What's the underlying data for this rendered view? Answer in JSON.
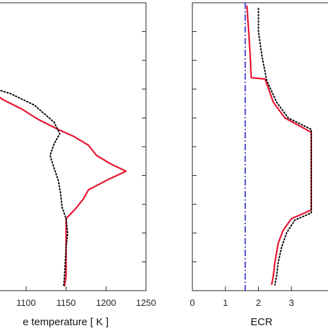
{
  "chart_data": [
    {
      "type": "line",
      "xlabel": "e temperature [ K ]",
      "xlim": [
        1050,
        1250
      ],
      "ylim": [
        0,
        1
      ],
      "x_ticks": [
        1100,
        1150,
        1200,
        1250
      ],
      "x_tick_labels": [
        "1100",
        "1150",
        "1200",
        "1250"
      ],
      "y_ticks": [
        0,
        0.1,
        0.2,
        0.3,
        0.4,
        0.5,
        0.6,
        0.7,
        0.8,
        0.9,
        1.0
      ],
      "series": [
        {
          "style": "solid",
          "color": "#e8112d",
          "points": [
            [
              1050,
              0.71
            ],
            [
              1070,
              0.665
            ],
            [
              1095,
              0.63
            ],
            [
              1115,
              0.595
            ],
            [
              1140,
              0.56
            ],
            [
              1160,
              0.535
            ],
            [
              1178,
              0.505
            ],
            [
              1188,
              0.47
            ],
            [
              1206,
              0.44
            ],
            [
              1225,
              0.415
            ],
            [
              1202,
              0.385
            ],
            [
              1178,
              0.35
            ],
            [
              1172,
              0.32
            ],
            [
              1162,
              0.285
            ],
            [
              1150,
              0.25
            ],
            [
              1150,
              0.2
            ],
            [
              1150,
              0.15
            ],
            [
              1150,
              0.1
            ],
            [
              1150,
              0.05
            ],
            [
              1148,
              0.015
            ]
          ]
        },
        {
          "style": "dotted",
          "color": "#000000",
          "points": [
            [
              1050,
              0.71
            ],
            [
              1080,
              0.685
            ],
            [
              1110,
              0.645
            ],
            [
              1135,
              0.585
            ],
            [
              1142,
              0.545
            ],
            [
              1135,
              0.51
            ],
            [
              1130,
              0.47
            ],
            [
              1135,
              0.425
            ],
            [
              1140,
              0.385
            ],
            [
              1143,
              0.34
            ],
            [
              1145,
              0.29
            ],
            [
              1150,
              0.25
            ],
            [
              1152,
              0.2
            ],
            [
              1150,
              0.15
            ],
            [
              1149,
              0.1
            ],
            [
              1148,
              0.05
            ],
            [
              1147,
              0.015
            ]
          ]
        }
      ]
    },
    {
      "type": "line",
      "xlabel": "ECR",
      "xlim": [
        0,
        4.4
      ],
      "ylim": [
        0,
        1
      ],
      "x_ticks": [
        0,
        1,
        2,
        3
      ],
      "x_tick_labels": [
        "0",
        "1",
        "2",
        "3"
      ],
      "y_ticks": [
        0,
        0.1,
        0.2,
        0.3,
        0.4,
        0.5,
        0.6,
        0.7,
        0.8,
        0.9,
        1.0
      ],
      "vline": {
        "x": 1.6,
        "style": "dashdot",
        "color": "#2020cc"
      },
      "series": [
        {
          "style": "solid",
          "color": "#e8112d",
          "points": [
            [
              1.65,
              0.99
            ],
            [
              1.7,
              0.91
            ],
            [
              1.75,
              0.82
            ],
            [
              1.78,
              0.74
            ],
            [
              2.2,
              0.735
            ],
            [
              2.45,
              0.655
            ],
            [
              2.8,
              0.6
            ],
            [
              3.6,
              0.55
            ],
            [
              3.6,
              0.28
            ],
            [
              3.0,
              0.25
            ],
            [
              2.75,
              0.21
            ],
            [
              2.6,
              0.165
            ],
            [
              2.5,
              0.1
            ],
            [
              2.45,
              0.05
            ],
            [
              2.4,
              0.02
            ]
          ]
        },
        {
          "style": "dotted",
          "color": "#000000",
          "points": [
            [
              2.0,
              0.98
            ],
            [
              2.0,
              0.9
            ],
            [
              2.1,
              0.82
            ],
            [
              2.25,
              0.73
            ],
            [
              2.55,
              0.655
            ],
            [
              2.9,
              0.6
            ],
            [
              3.6,
              0.56
            ],
            [
              3.6,
              0.27
            ],
            [
              3.1,
              0.245
            ],
            [
              2.85,
              0.2
            ],
            [
              2.7,
              0.15
            ],
            [
              2.6,
              0.1
            ],
            [
              2.55,
              0.05
            ],
            [
              2.5,
              0.02
            ]
          ]
        }
      ]
    }
  ]
}
